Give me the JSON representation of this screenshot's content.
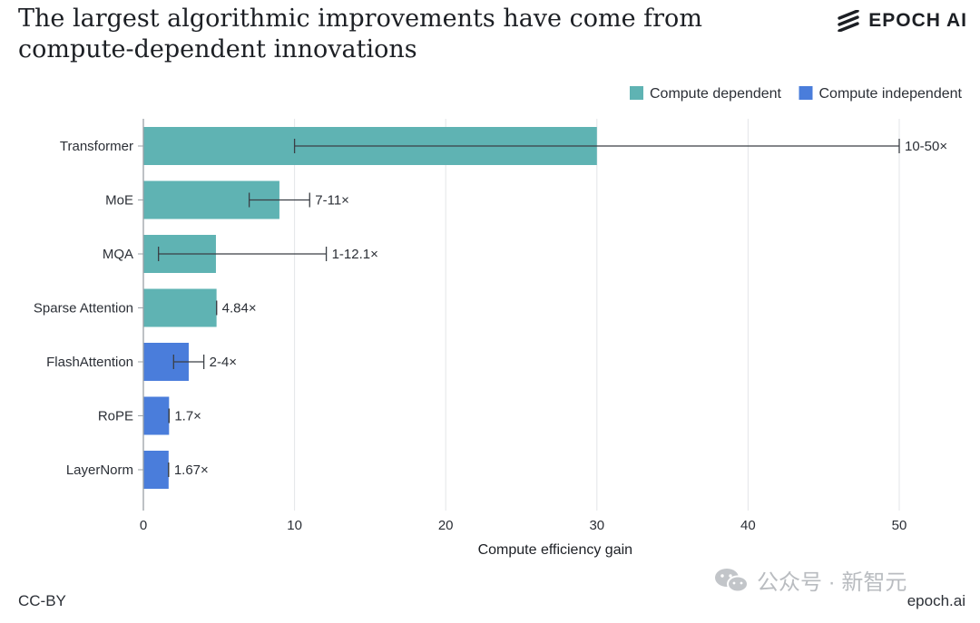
{
  "title": "The largest algorithmic improvements have come from compute-dependent innovations",
  "logo": {
    "text": "EPOCH AI",
    "icon": "epoch-stripes-icon"
  },
  "footer": {
    "license": "CC-BY",
    "site": "epoch.ai"
  },
  "watermark": {
    "text": "公众号 · 新智元",
    "icon": "wechat-icon"
  },
  "colors": {
    "dependent": "#5fb3b3",
    "independent": "#4a7ddb",
    "grid": "#e3e5e8",
    "axis": "#9aa0a6",
    "text": "#2b2f36"
  },
  "chart_data": {
    "type": "bar",
    "orientation": "horizontal",
    "xlabel": "Compute efficiency gain",
    "xlim": [
      0,
      54
    ],
    "xticks": [
      0,
      10,
      20,
      30,
      40,
      50
    ],
    "grid": true,
    "legend_position": "top-right",
    "legend": [
      {
        "name": "Compute dependent",
        "color": "#5fb3b3"
      },
      {
        "name": "Compute independent",
        "color": "#4a7ddb"
      }
    ],
    "bars": [
      {
        "category": "Transformer",
        "value": 30,
        "low": 10,
        "high": 50,
        "label": "10-50×",
        "group": "Compute dependent"
      },
      {
        "category": "MoE",
        "value": 9,
        "low": 7,
        "high": 11,
        "label": "7-11×",
        "group": "Compute dependent"
      },
      {
        "category": "MQA",
        "value": 4.8,
        "low": 1,
        "high": 12.1,
        "label": "1-12.1×",
        "group": "Compute dependent"
      },
      {
        "category": "Sparse Attention",
        "value": 4.84,
        "low": 4.84,
        "high": 4.84,
        "label": "4.84×",
        "group": "Compute dependent"
      },
      {
        "category": "FlashAttention",
        "value": 3,
        "low": 2,
        "high": 4,
        "label": "2-4×",
        "group": "Compute independent"
      },
      {
        "category": "RoPE",
        "value": 1.7,
        "low": 1.7,
        "high": 1.7,
        "label": "1.7×",
        "group": "Compute independent"
      },
      {
        "category": "LayerNorm",
        "value": 1.67,
        "low": 1.67,
        "high": 1.67,
        "label": "1.67×",
        "group": "Compute independent"
      }
    ]
  }
}
